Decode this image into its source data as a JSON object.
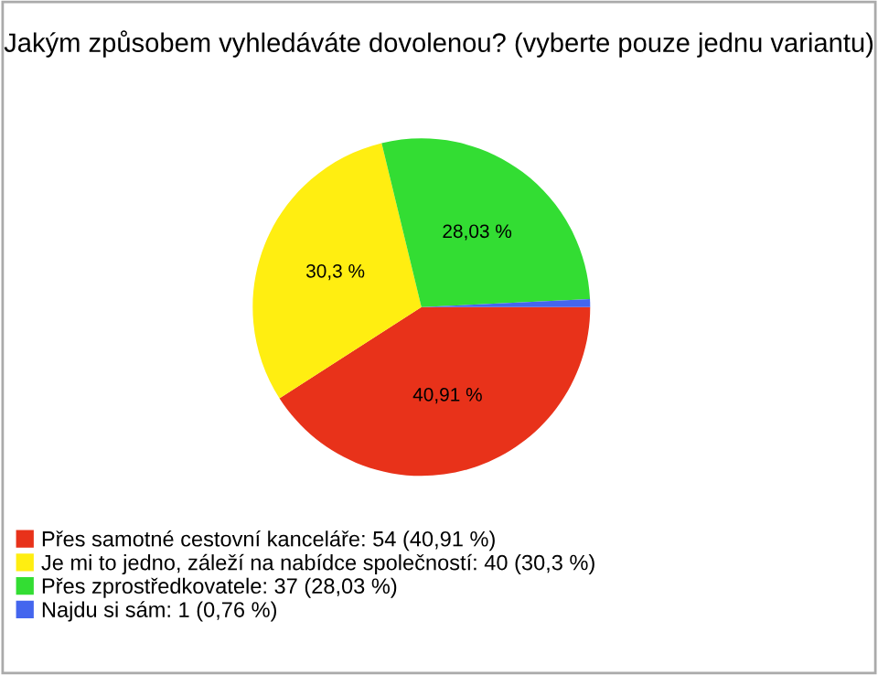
{
  "chart_data": {
    "type": "pie",
    "title": "Jakým způsobem vyhledáváte dovolenou? (vyberte pouze jednu variantu)",
    "categories": [
      "Přes samotné cestovní kanceláře: 54 (40,91 %)",
      "Je mi to jedno, záleží na nabídce společností: 40 (30,3 %)",
      "Přes zprostředkovatele: 37 (28,03 %)",
      "Najdu si sám: 1 (0,76 %)"
    ],
    "values": [
      40.91,
      30.3,
      28.03,
      0.76
    ],
    "value_labels": [
      "40,91 %",
      "30,3 %",
      "28,03 %",
      null
    ],
    "colors": [
      "#e8321a",
      "#ffee11",
      "#33dd33",
      "#4466ee"
    ],
    "legend": "bottom left"
  }
}
